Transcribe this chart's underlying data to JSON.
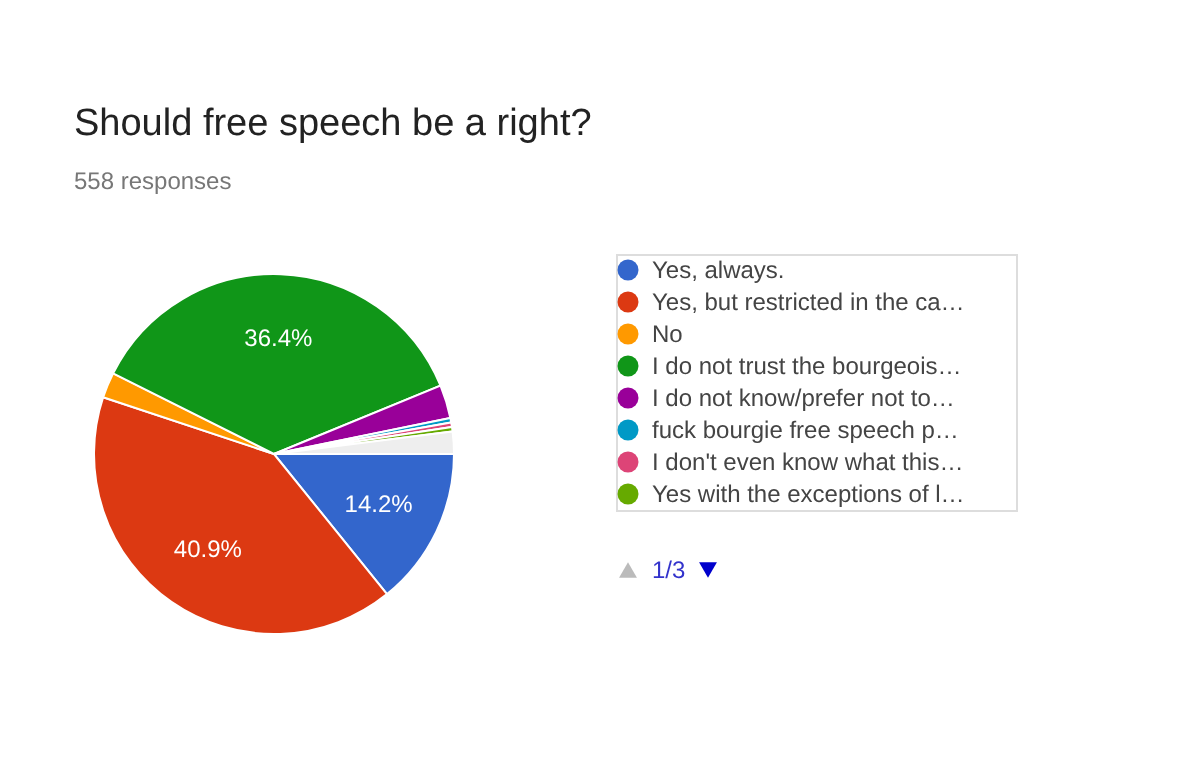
{
  "chart_data": {
    "type": "pie",
    "title": "Should free speech be a right?",
    "subtitle": "558 responses",
    "categories": [
      "Yes, always.",
      "Yes, but restricted in the ca…",
      "No",
      "I do not trust the bourgeois…",
      "I do not know/prefer not to…",
      "fuck bourgie free speech p…",
      "I don't even know what this…",
      "Yes with the exceptions of l…",
      null
    ],
    "values": [
      14.2,
      40.9,
      2.3,
      36.4,
      3.0,
      0.4,
      0.4,
      0.4,
      2.0
    ],
    "colors": [
      "#3366cc",
      "#dc3912",
      "#ff9900",
      "#109618",
      "#990099",
      "#0099c6",
      "#dd4477",
      "#66aa00",
      "#eeeeee"
    ],
    "value_labels": [
      "14.2%",
      "40.9%",
      null,
      "36.4%",
      null,
      null,
      null,
      null,
      null
    ],
    "legend": "right",
    "annotations": [
      "1/3"
    ]
  }
}
